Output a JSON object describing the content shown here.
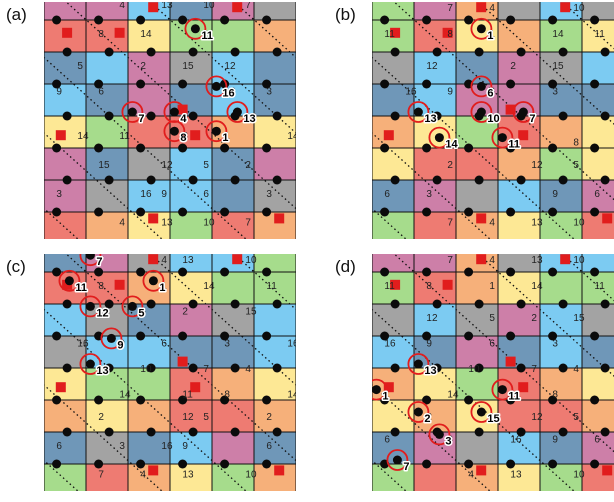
{
  "colors": {
    "red": "#ee7b72",
    "orange": "#f6b07a",
    "yellow": "#fde895",
    "green": "#a6dc8c",
    "pink": "#cd7fa8",
    "blue": "#7ccbf2",
    "steel": "#6f97b8",
    "gray": "#a3a3a3",
    "marker": "#e11d1d",
    "dot": "#0b0b0b",
    "line": "#111111"
  },
  "panels": [
    {
      "label": "(a)",
      "numbers": [
        {
          "t": "4",
          "r": 0.5,
          "c": 1.7
        },
        {
          "t": "13",
          "r": 0.5,
          "c": 2.7
        },
        {
          "t": "10",
          "r": 0.5,
          "c": 3.7
        },
        {
          "t": "7",
          "r": 0.5,
          "c": 4.7
        },
        {
          "t": "8",
          "r": 1.4,
          "c": 1.2
        },
        {
          "t": "14",
          "r": 1.4,
          "c": 2.2
        },
        {
          "t": "11",
          "r": 1.4,
          "c": 3.7
        },
        {
          "t": "5",
          "r": 2.4,
          "c": 0.7
        },
        {
          "t": "2",
          "r": 2.4,
          "c": 2.2
        },
        {
          "t": "15",
          "r": 2.4,
          "c": 3.2
        },
        {
          "t": "12",
          "r": 2.4,
          "c": 4.2
        },
        {
          "t": "9",
          "r": 3.2,
          "c": 0.2
        },
        {
          "t": "6",
          "r": 3.2,
          "c": 1.2
        },
        {
          "t": "16",
          "r": 3.2,
          "c": 4.2
        },
        {
          "t": "3",
          "r": 3.2,
          "c": 5.2
        },
        {
          "t": "7",
          "r": 4.0,
          "c": 2.2
        },
        {
          "t": "4",
          "r": 4.0,
          "c": 3.2
        },
        {
          "t": "13",
          "r": 4.0,
          "c": 4.7
        },
        {
          "t": "14",
          "r": 4.6,
          "c": 0.7
        },
        {
          "t": "11",
          "r": 4.6,
          "c": 1.7
        },
        {
          "t": "8",
          "r": 4.6,
          "c": 3.2
        },
        {
          "t": "1",
          "r": 4.6,
          "c": 4.2
        },
        {
          "t": "14",
          "r": 4.6,
          "c": 5.7
        },
        {
          "t": "15",
          "r": 5.5,
          "c": 1.2
        },
        {
          "t": "12",
          "r": 5.5,
          "c": 2.7
        },
        {
          "t": "5",
          "r": 5.5,
          "c": 3.7
        },
        {
          "t": "2",
          "r": 5.5,
          "c": 4.7
        },
        {
          "t": "3",
          "r": 6.4,
          "c": 0.2
        },
        {
          "t": "16",
          "r": 6.4,
          "c": 2.2
        },
        {
          "t": "9",
          "r": 6.4,
          "c": 2.7
        },
        {
          "t": "6",
          "r": 6.4,
          "c": 3.7
        },
        {
          "t": "3",
          "r": 6.4,
          "c": 5.2
        },
        {
          "t": "4",
          "r": 7.3,
          "c": 1.7
        },
        {
          "t": "13",
          "r": 7.3,
          "c": 2.7
        },
        {
          "t": "10",
          "r": 7.3,
          "c": 3.7
        },
        {
          "t": "7",
          "r": 7.3,
          "c": 4.7
        }
      ],
      "callouts": [
        {
          "t": "11",
          "r": 1.4,
          "c": 3.7
        },
        {
          "t": "16",
          "r": 3.2,
          "c": 4.2
        },
        {
          "t": "7",
          "r": 4.0,
          "c": 2.2
        },
        {
          "t": "4",
          "r": 4.0,
          "c": 3.2
        },
        {
          "t": "13",
          "r": 4.0,
          "c": 4.7
        },
        {
          "t": "8",
          "r": 4.6,
          "c": 3.2
        },
        {
          "t": "1",
          "r": 4.6,
          "c": 4.2
        }
      ]
    },
    {
      "label": "(b)",
      "numbers": [
        {
          "t": "7",
          "r": 0.6,
          "c": 1.7
        },
        {
          "t": "4",
          "r": 0.6,
          "c": 2.7
        },
        {
          "t": "10",
          "r": 0.6,
          "c": 4.7
        },
        {
          "t": "11",
          "r": 1.4,
          "c": 0.2
        },
        {
          "t": "8",
          "r": 1.4,
          "c": 1.7
        },
        {
          "t": "1",
          "r": 1.4,
          "c": 2.7
        },
        {
          "t": "14",
          "r": 1.4,
          "c": 4.2
        },
        {
          "t": "11",
          "r": 1.4,
          "c": 5.2
        },
        {
          "t": "12",
          "r": 2.4,
          "c": 1.2
        },
        {
          "t": "2",
          "r": 2.4,
          "c": 3.2
        },
        {
          "t": "15",
          "r": 2.4,
          "c": 4.2
        },
        {
          "t": "16",
          "r": 3.2,
          "c": 0.7
        },
        {
          "t": "9",
          "r": 3.2,
          "c": 1.7
        },
        {
          "t": "6",
          "r": 3.2,
          "c": 2.7
        },
        {
          "t": "3",
          "r": 3.2,
          "c": 4.2
        },
        {
          "t": "16",
          "r": 3.2,
          "c": 5.7
        },
        {
          "t": "13",
          "r": 4.0,
          "c": 1.2
        },
        {
          "t": "10",
          "r": 4.0,
          "c": 2.7
        },
        {
          "t": "7",
          "r": 4.0,
          "c": 3.7
        },
        {
          "t": "14",
          "r": 4.8,
          "c": 1.7
        },
        {
          "t": "11",
          "r": 4.8,
          "c": 3.2
        },
        {
          "t": "8",
          "r": 4.8,
          "c": 4.7
        },
        {
          "t": "2",
          "r": 5.5,
          "c": 1.7
        },
        {
          "t": "12",
          "r": 5.5,
          "c": 3.7
        },
        {
          "t": "5",
          "r": 5.5,
          "c": 4.7
        },
        {
          "t": "6",
          "r": 6.4,
          "c": 0.2
        },
        {
          "t": "3",
          "r": 6.4,
          "c": 1.2
        },
        {
          "t": "9",
          "r": 6.4,
          "c": 4.2
        },
        {
          "t": "6",
          "r": 6.4,
          "c": 5.2
        },
        {
          "t": "7",
          "r": 7.3,
          "c": 1.7
        },
        {
          "t": "4",
          "r": 7.3,
          "c": 2.7
        },
        {
          "t": "13",
          "r": 7.3,
          "c": 3.7
        },
        {
          "t": "10",
          "r": 7.3,
          "c": 4.7
        }
      ],
      "callouts": [
        {
          "t": "1",
          "r": 1.4,
          "c": 2.7
        },
        {
          "t": "6",
          "r": 3.2,
          "c": 2.7
        },
        {
          "t": "13",
          "r": 4.0,
          "c": 1.2
        },
        {
          "t": "10",
          "r": 4.0,
          "c": 2.7
        },
        {
          "t": "7",
          "r": 4.0,
          "c": 3.7
        },
        {
          "t": "14",
          "r": 4.8,
          "c": 1.7
        },
        {
          "t": "11",
          "r": 4.8,
          "c": 3.2
        }
      ]
    },
    {
      "label": "(c)",
      "numbers": [
        {
          "t": "7",
          "r": 0.6,
          "c": 1.2
        },
        {
          "t": "4",
          "r": 0.6,
          "c": 2.7
        },
        {
          "t": "13",
          "r": 0.6,
          "c": 3.2
        },
        {
          "t": "10",
          "r": 0.6,
          "c": 4.7
        },
        {
          "t": "11",
          "r": 1.4,
          "c": 0.7
        },
        {
          "t": "8",
          "r": 1.4,
          "c": 1.2
        },
        {
          "t": "1",
          "r": 1.4,
          "c": 2.7
        },
        {
          "t": "14",
          "r": 1.4,
          "c": 3.7
        },
        {
          "t": "11",
          "r": 1.4,
          "c": 5.2
        },
        {
          "t": "12",
          "r": 2.2,
          "c": 1.2
        },
        {
          "t": "5",
          "r": 2.2,
          "c": 2.2
        },
        {
          "t": "2",
          "r": 2.2,
          "c": 3.2
        },
        {
          "t": "15",
          "r": 2.2,
          "c": 4.7
        },
        {
          "t": "16",
          "r": 3.2,
          "c": 0.7
        },
        {
          "t": "9",
          "r": 3.2,
          "c": 1.7
        },
        {
          "t": "6",
          "r": 3.2,
          "c": 2.7
        },
        {
          "t": "3",
          "r": 3.2,
          "c": 4.2
        },
        {
          "t": "16",
          "r": 3.2,
          "c": 5.7
        },
        {
          "t": "13",
          "r": 4.0,
          "c": 1.2
        },
        {
          "t": "10",
          "r": 4.0,
          "c": 2.2
        },
        {
          "t": "7",
          "r": 4.0,
          "c": 3.7
        },
        {
          "t": "4",
          "r": 4.0,
          "c": 4.7
        },
        {
          "t": "14",
          "r": 4.8,
          "c": 1.7
        },
        {
          "t": "11",
          "r": 4.8,
          "c": 3.2
        },
        {
          "t": "8",
          "r": 4.8,
          "c": 4.2
        },
        {
          "t": "14",
          "r": 4.8,
          "c": 5.7
        },
        {
          "t": "2",
          "r": 5.5,
          "c": 1.2
        },
        {
          "t": "12",
          "r": 5.5,
          "c": 3.2
        },
        {
          "t": "5",
          "r": 5.5,
          "c": 3.7
        },
        {
          "t": "2",
          "r": 5.5,
          "c": 5.2
        },
        {
          "t": "6",
          "r": 6.4,
          "c": 0.2
        },
        {
          "t": "3",
          "r": 6.4,
          "c": 1.7
        },
        {
          "t": "16",
          "r": 6.4,
          "c": 2.7
        },
        {
          "t": "9",
          "r": 6.4,
          "c": 3.2
        },
        {
          "t": "6",
          "r": 6.4,
          "c": 5.2
        },
        {
          "t": "7",
          "r": 7.3,
          "c": 1.2
        },
        {
          "t": "4",
          "r": 7.3,
          "c": 2.2
        },
        {
          "t": "13",
          "r": 7.3,
          "c": 3.2
        },
        {
          "t": "10",
          "r": 7.3,
          "c": 4.7
        }
      ],
      "callouts": [
        {
          "t": "7",
          "r": 0.6,
          "c": 1.2
        },
        {
          "t": "11",
          "r": 1.4,
          "c": 0.7
        },
        {
          "t": "1",
          "r": 1.4,
          "c": 2.7
        },
        {
          "t": "12",
          "r": 2.2,
          "c": 1.2
        },
        {
          "t": "5",
          "r": 2.2,
          "c": 2.2
        },
        {
          "t": "9",
          "r": 3.2,
          "c": 1.7
        },
        {
          "t": "13",
          "r": 4.0,
          "c": 1.2
        }
      ]
    },
    {
      "label": "(d)",
      "numbers": [
        {
          "t": "7",
          "r": 0.6,
          "c": 1.7
        },
        {
          "t": "4",
          "r": 0.6,
          "c": 2.7
        },
        {
          "t": "13",
          "r": 0.6,
          "c": 3.7
        },
        {
          "t": "10",
          "r": 0.6,
          "c": 4.7
        },
        {
          "t": "11",
          "r": 1.4,
          "c": 0.2
        },
        {
          "t": "8",
          "r": 1.4,
          "c": 1.2
        },
        {
          "t": "1",
          "r": 1.4,
          "c": 2.7
        },
        {
          "t": "14",
          "r": 1.4,
          "c": 3.7
        },
        {
          "t": "11",
          "r": 1.4,
          "c": 5.2
        },
        {
          "t": "12",
          "r": 2.4,
          "c": 1.2
        },
        {
          "t": "5",
          "r": 2.4,
          "c": 2.7
        },
        {
          "t": "2",
          "r": 2.4,
          "c": 3.7
        },
        {
          "t": "15",
          "r": 2.4,
          "c": 4.7
        },
        {
          "t": "16",
          "r": 3.2,
          "c": 0.2
        },
        {
          "t": "9",
          "r": 3.2,
          "c": 1.2
        },
        {
          "t": "6",
          "r": 3.2,
          "c": 2.7
        },
        {
          "t": "3",
          "r": 3.2,
          "c": 4.2
        },
        {
          "t": "16",
          "r": 3.2,
          "c": 5.7
        },
        {
          "t": "13",
          "r": 4.0,
          "c": 1.2
        },
        {
          "t": "10",
          "r": 4.0,
          "c": 2.2
        },
        {
          "t": "7",
          "r": 4.0,
          "c": 3.7
        },
        {
          "t": "4",
          "r": 4.0,
          "c": 4.7
        },
        {
          "t": "1",
          "r": 4.8,
          "c": 0.2
        },
        {
          "t": "14",
          "r": 4.8,
          "c": 1.7
        },
        {
          "t": "11",
          "r": 4.8,
          "c": 3.2
        },
        {
          "t": "8",
          "r": 4.8,
          "c": 4.2
        },
        {
          "t": "14",
          "r": 4.8,
          "c": 5.7
        },
        {
          "t": "2",
          "r": 5.5,
          "c": 1.2
        },
        {
          "t": "15",
          "r": 5.5,
          "c": 2.7
        },
        {
          "t": "12",
          "r": 5.5,
          "c": 3.7
        },
        {
          "t": "5",
          "r": 5.5,
          "c": 4.7
        },
        {
          "t": "6",
          "r": 6.2,
          "c": 0.2
        },
        {
          "t": "3",
          "r": 6.2,
          "c": 1.7
        },
        {
          "t": "16",
          "r": 6.2,
          "c": 3.2
        },
        {
          "t": "9",
          "r": 6.2,
          "c": 4.2
        },
        {
          "t": "6",
          "r": 6.2,
          "c": 5.2
        },
        {
          "t": "7",
          "r": 7.0,
          "c": 0.7
        },
        {
          "t": "4",
          "r": 7.3,
          "c": 2.2
        },
        {
          "t": "13",
          "r": 7.3,
          "c": 3.2
        },
        {
          "t": "10",
          "r": 7.3,
          "c": 4.7
        }
      ],
      "callouts": [
        {
          "t": "13",
          "r": 4.0,
          "c": 1.2
        },
        {
          "t": "1",
          "r": 4.8,
          "c": 0.2
        },
        {
          "t": "11",
          "r": 4.8,
          "c": 3.2
        },
        {
          "t": "2",
          "r": 5.5,
          "c": 1.2
        },
        {
          "t": "15",
          "r": 5.5,
          "c": 2.7
        },
        {
          "t": "3",
          "r": 6.2,
          "c": 1.7
        },
        {
          "t": "7",
          "r": 7.0,
          "c": 0.7
        }
      ]
    }
  ]
}
